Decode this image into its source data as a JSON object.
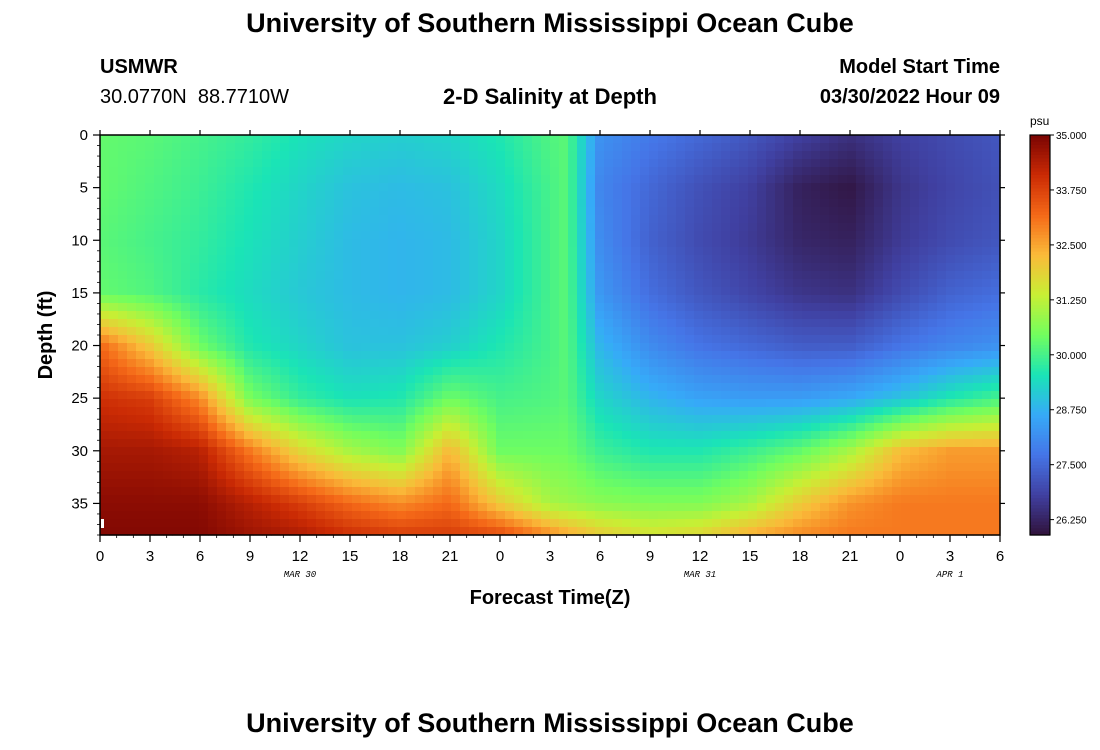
{
  "header": {
    "title": "University of Southern Mississippi Ocean Cube",
    "station": "USMWR",
    "coords": "30.0770N  88.7710W",
    "chart_title": "2-D Salinity at Depth",
    "start_label": "Model Start Time",
    "start_value": "03/30/2022 Hour 09"
  },
  "footer": {
    "title": "University of Southern Mississippi Ocean Cube"
  },
  "chart_data": {
    "type": "heatmap",
    "title": "2-D Salinity at Depth",
    "xlabel": "Forecast Time(Z)",
    "ylabel": "Depth (ft)",
    "x_hours": [
      0,
      3,
      6,
      9,
      12,
      15,
      18,
      21,
      24,
      27,
      30,
      33,
      36,
      39,
      42,
      45,
      48,
      51,
      54
    ],
    "x_tick_labels": [
      "0",
      "3",
      "6",
      "9",
      "12",
      "15",
      "18",
      "21",
      "0",
      "3",
      "6",
      "9",
      "12",
      "15",
      "18",
      "21",
      "0",
      "3",
      "6"
    ],
    "date_labels": [
      {
        "hour": 12,
        "label": "MAR 30"
      },
      {
        "hour": 36,
        "label": "MAR 31"
      },
      {
        "hour": 51,
        "label": "APR 1"
      }
    ],
    "xlim": [
      0,
      54
    ],
    "y_ticks": [
      0,
      5,
      10,
      15,
      20,
      25,
      30,
      35
    ],
    "ylim": [
      0,
      38
    ],
    "y_inverted": true,
    "colorbar": {
      "unit": "psu",
      "vmin": 25.9,
      "vmax": 35.0,
      "tick_labels": [
        "35.000",
        "33.750",
        "32.500",
        "31.250",
        "30.000",
        "28.750",
        "27.500",
        "26.250"
      ],
      "tick_values": [
        35.0,
        33.75,
        32.5,
        31.25,
        30.0,
        28.75,
        27.5,
        26.25
      ]
    },
    "profiles": {
      "depths": [
        0,
        5,
        10,
        15,
        20,
        25,
        30,
        35,
        38
      ],
      "hours": [
        0,
        3,
        6,
        9,
        12,
        15,
        18,
        21,
        24,
        27,
        28,
        30,
        33,
        36,
        39,
        42,
        45,
        48,
        51,
        54
      ],
      "salinity": [
        [
          30.3,
          30.3,
          30.2,
          30.3,
          33.2,
          34.0,
          34.5,
          34.8,
          34.9
        ],
        [
          30.2,
          30.1,
          30.0,
          30.1,
          32.0,
          33.8,
          34.5,
          34.8,
          34.9
        ],
        [
          30.0,
          29.9,
          29.8,
          29.7,
          30.4,
          32.8,
          34.3,
          34.8,
          34.9
        ],
        [
          29.8,
          29.6,
          29.5,
          29.4,
          29.6,
          30.5,
          33.0,
          34.3,
          34.6
        ],
        [
          29.5,
          29.3,
          29.2,
          29.1,
          29.3,
          29.8,
          31.8,
          33.8,
          34.4
        ],
        [
          29.3,
          29.0,
          28.9,
          28.9,
          29.0,
          29.5,
          31.0,
          33.2,
          34.0
        ],
        [
          29.2,
          28.9,
          28.8,
          28.8,
          29.0,
          29.6,
          30.6,
          32.8,
          33.8
        ],
        [
          29.3,
          29.0,
          28.9,
          28.9,
          29.2,
          30.4,
          32.3,
          33.2,
          33.8
        ],
        [
          29.6,
          29.4,
          29.3,
          29.3,
          29.6,
          30.0,
          30.4,
          32.0,
          33.6
        ],
        [
          30.1,
          30.0,
          30.0,
          30.0,
          30.0,
          30.1,
          30.4,
          31.0,
          32.8
        ],
        [
          30.2,
          30.2,
          30.2,
          30.2,
          30.2,
          30.2,
          30.4,
          30.9,
          32.5
        ],
        [
          28.2,
          28.0,
          28.1,
          28.3,
          28.8,
          29.3,
          29.9,
          30.7,
          32.0
        ],
        [
          27.8,
          27.5,
          27.4,
          27.6,
          28.1,
          28.8,
          29.6,
          30.6,
          31.6
        ],
        [
          27.5,
          27.1,
          27.0,
          27.2,
          27.7,
          28.5,
          29.6,
          30.6,
          31.8
        ],
        [
          27.2,
          26.8,
          26.7,
          26.9,
          27.5,
          28.4,
          29.9,
          31.0,
          32.4
        ],
        [
          26.8,
          26.2,
          26.3,
          26.6,
          27.3,
          28.4,
          30.3,
          32.0,
          32.8
        ],
        [
          26.5,
          26.0,
          26.2,
          26.5,
          27.3,
          28.6,
          31.0,
          32.7,
          33.0
        ],
        [
          26.8,
          26.6,
          26.7,
          27.0,
          27.7,
          29.0,
          32.2,
          33.0,
          33.0
        ],
        [
          27.0,
          26.9,
          27.0,
          27.4,
          28.0,
          29.6,
          32.6,
          33.0,
          33.0
        ],
        [
          27.2,
          27.1,
          27.2,
          27.6,
          28.2,
          30.0,
          32.6,
          33.0,
          33.0
        ]
      ]
    }
  }
}
